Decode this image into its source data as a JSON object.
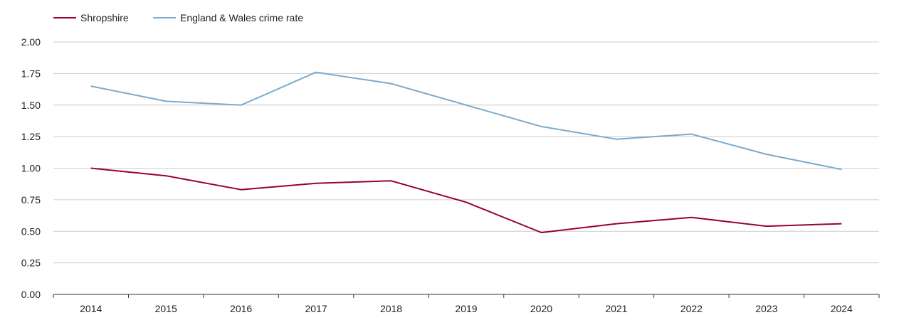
{
  "chart_data": {
    "type": "line",
    "title": "",
    "xlabel": "",
    "ylabel": "",
    "categories": [
      "2014",
      "2015",
      "2016",
      "2017",
      "2018",
      "2019",
      "2020",
      "2021",
      "2022",
      "2023",
      "2024"
    ],
    "y_ticks": [
      "0.00",
      "0.25",
      "0.50",
      "0.75",
      "1.00",
      "1.25",
      "1.50",
      "1.75",
      "2.00"
    ],
    "ylim": [
      0,
      2
    ],
    "grid": true,
    "legend_position": "top-left",
    "series": [
      {
        "name": "Shropshire",
        "color": "#990033",
        "values": [
          1.0,
          0.94,
          0.83,
          0.88,
          0.9,
          0.73,
          0.49,
          0.56,
          0.61,
          0.54,
          0.56
        ]
      },
      {
        "name": "England & Wales crime rate",
        "color": "#7aaacd",
        "values": [
          1.65,
          1.53,
          1.5,
          1.76,
          1.67,
          1.5,
          1.33,
          1.23,
          1.27,
          1.11,
          0.99
        ]
      }
    ]
  }
}
